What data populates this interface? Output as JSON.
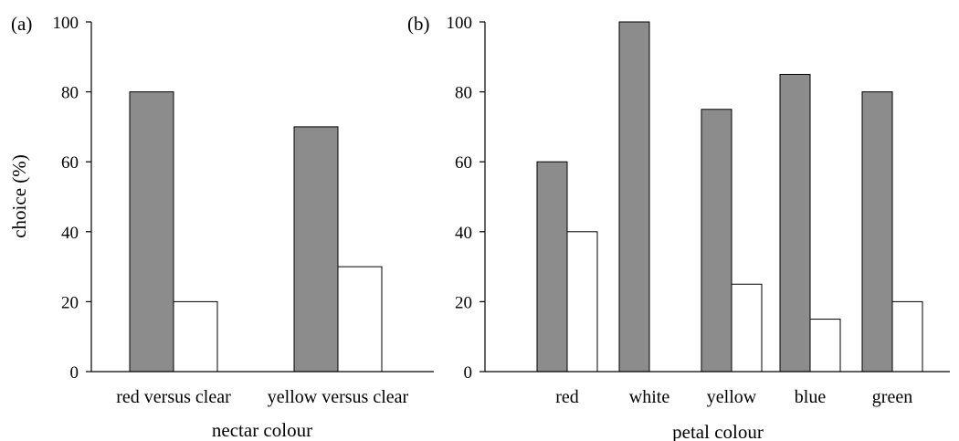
{
  "chart_data": [
    {
      "type": "bar",
      "panel_label": "(a)",
      "categories": [
        "red versus clear",
        "yellow versus clear"
      ],
      "series": [
        {
          "values": [
            80,
            70
          ],
          "color": "#8c8c8c"
        },
        {
          "values": [
            20,
            30
          ],
          "color": "#ffffff"
        }
      ],
      "title": "",
      "xlabel": "nectar colour",
      "ylabel": "choice (%)",
      "ylim": [
        0,
        100
      ],
      "yticks": [
        "0",
        "20",
        "40",
        "60",
        "80",
        "100"
      ],
      "grid": false
    },
    {
      "type": "bar",
      "panel_label": "(b)",
      "categories": [
        "red",
        "white",
        "yellow",
        "blue",
        "green"
      ],
      "series": [
        {
          "values": [
            60,
            100,
            75,
            85,
            80
          ],
          "color": "#8c8c8c"
        },
        {
          "values": [
            40,
            0,
            25,
            15,
            20
          ],
          "color": "#ffffff"
        }
      ],
      "title": "",
      "xlabel": "petal colour",
      "ylabel": "",
      "ylim": [
        0,
        100
      ],
      "yticks": [
        "0",
        "20",
        "40",
        "60",
        "80",
        "100"
      ],
      "grid": false
    }
  ]
}
